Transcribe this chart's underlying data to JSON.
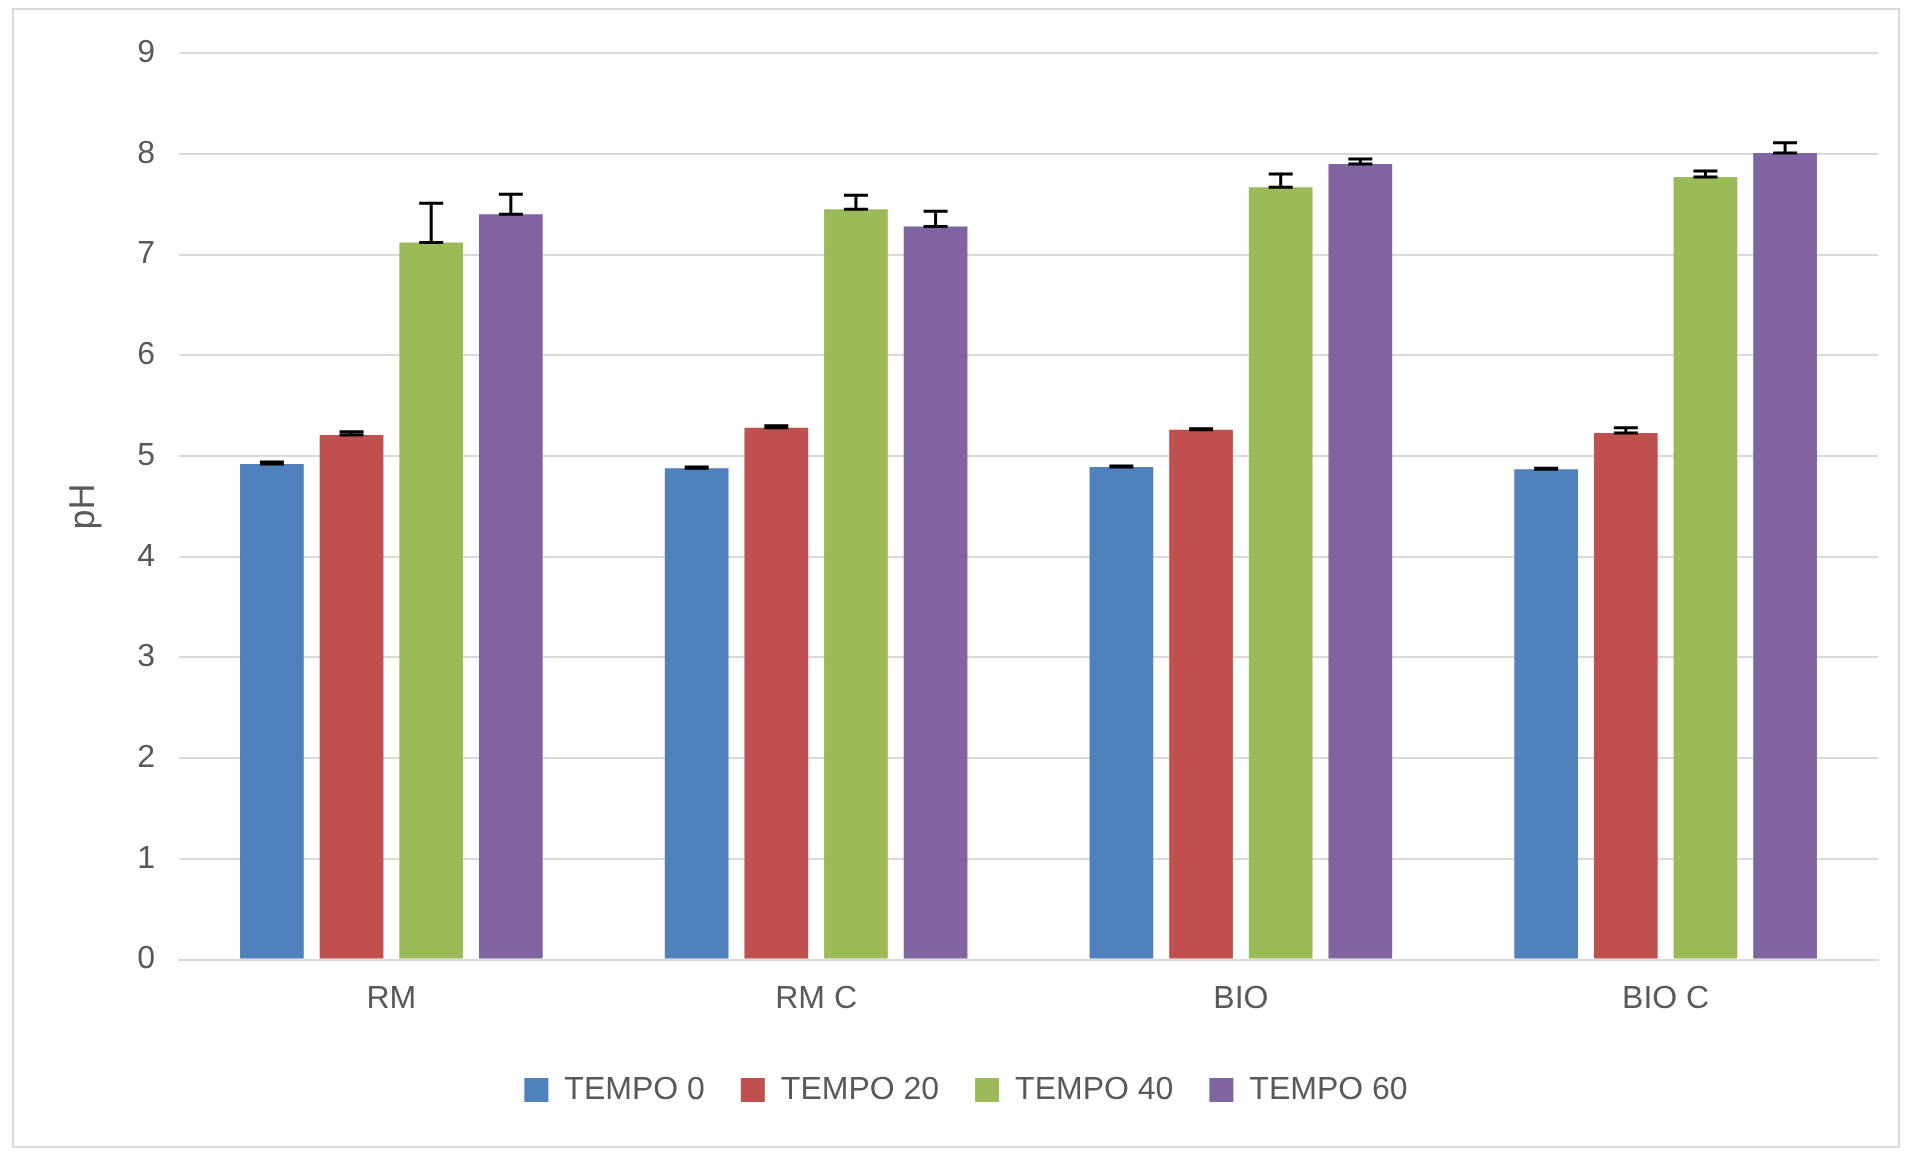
{
  "chart_data": {
    "type": "bar",
    "ylabel": "pH",
    "categories": [
      "RM",
      "RM C",
      "BIO",
      "BIO C"
    ],
    "series": [
      {
        "name": "TEMPO 0",
        "color": "#4f81bd",
        "values": [
          4.92,
          4.88,
          4.89,
          4.87
        ],
        "errors": [
          [
            4.92,
            4.94
          ],
          [
            4.88,
            4.89
          ],
          [
            4.89,
            4.9
          ],
          [
            4.87,
            4.88
          ]
        ]
      },
      {
        "name": "TEMPO 20",
        "color": "#c0504d",
        "values": [
          5.21,
          5.28,
          5.26,
          5.23
        ],
        "errors": [
          [
            5.21,
            5.24
          ],
          [
            5.28,
            5.3
          ],
          [
            5.26,
            5.27
          ],
          [
            5.23,
            5.28
          ]
        ]
      },
      {
        "name": "TEMPO 40",
        "color": "#9bbb59",
        "values": [
          7.12,
          7.45,
          7.67,
          7.77
        ],
        "errors": [
          [
            7.12,
            7.51
          ],
          [
            7.45,
            7.59
          ],
          [
            7.67,
            7.8
          ],
          [
            7.77,
            7.83
          ]
        ]
      },
      {
        "name": "TEMPO 60",
        "color": "#8064a2",
        "values": [
          7.4,
          7.28,
          7.9,
          8.01
        ],
        "errors": [
          [
            7.4,
            7.6
          ],
          [
            7.28,
            7.43
          ],
          [
            7.9,
            7.95
          ],
          [
            8.01,
            8.11
          ]
        ]
      }
    ],
    "ylim": [
      0,
      9
    ],
    "yticks": [
      0,
      1,
      2,
      3,
      4,
      5,
      6,
      7,
      8,
      9
    ],
    "grid": "y",
    "legend": "bottom"
  }
}
